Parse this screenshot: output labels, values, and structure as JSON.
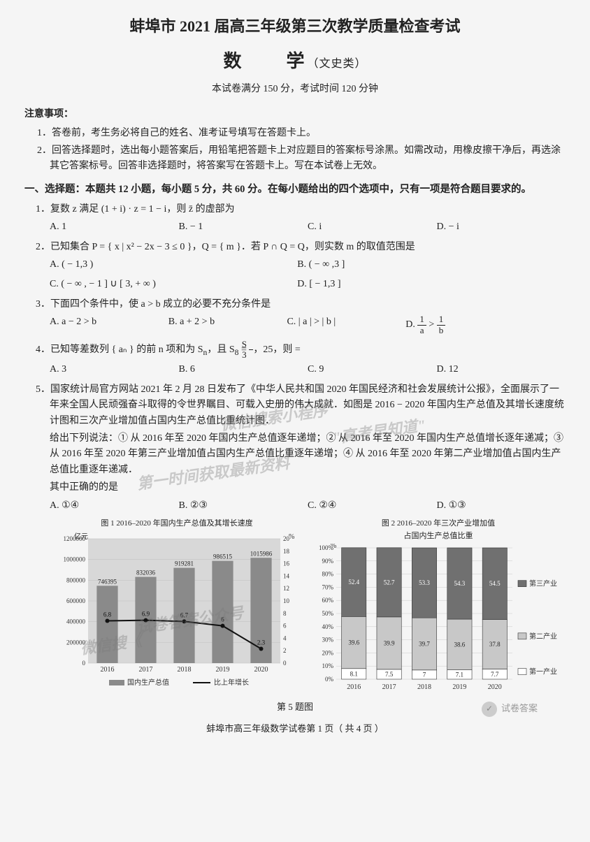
{
  "header": {
    "main_title": "蚌埠市 2021 届高三年级第三次教学质量检查考试",
    "subject": "数　　学",
    "subject_type": "（文史类）",
    "info": "本试卷满分 150 分，考试时间 120 分钟"
  },
  "notice": {
    "head": "注意事项：",
    "items": [
      "1．答卷前，考生务必将自己的姓名、准考证号填写在答题卡上。",
      "2．回答选择题时，选出每小题答案后，用铅笔把答题卡上对应题目的答案标号涂黑。如需改动，用橡皮擦干净后，再选涂其它答案标号。回答非选择题时，将答案写在答题卡上。写在本试卷上无效。"
    ]
  },
  "section1": {
    "head": "一、选择题：本题共 12 小题，每小题 5 分，共 60 分。在每小题给出的四个选项中，只有一项是符合题目要求的。"
  },
  "q1": {
    "text": "1．复数 z 满足 (1 + i) · z = 1 − i，则 z̄ 的虚部为",
    "a": "A. 1",
    "b": "B. − 1",
    "c": "C. i",
    "d": "D. − i"
  },
  "q2": {
    "text": "2．已知集合 P = { x | x² − 2x − 3 ≤ 0 }，Q = { m }．若 P ∩ Q = Q，则实数 m 的取值范围是",
    "a": "A. ( − 1,3 )",
    "b": "B. ( − ∞ ,3 ]",
    "c": "C. ( − ∞ , − 1 ] ∪ [ 3, + ∞ )",
    "d": "D. [ − 1,3 ]"
  },
  "q3": {
    "text": "3．下面四个条件中，使 a > b 成立的必要不充分条件是",
    "a": "A. a − 2 > b",
    "b": "B. a + 2 > b",
    "c": "C. | a | > | b |"
  },
  "q4": {
    "text_a": "4．已知等差数列 { aₙ } 的前 n 项和为 S",
    "text_b": "，且 S",
    "text_c": " = ",
    "text_d": "，25，则",
    "text_e": " =",
    "a": "A. 3",
    "b": "B. 6",
    "c": "C. 9",
    "d": "D. 12"
  },
  "q5": {
    "p1": "5．国家统计局官方网站 2021 年 2 月 28 日发布了《中华人民共和国 2020 年国民经济和社会发展统计公报》，全面展示了一年来全国人民顽强奋斗取得的令世界瞩目、可载入史册的伟大成就．如图是 2016 − 2020 年国内生产总值及其增长速度统计图和三次产业增加值占国内生产总值比重统计图．",
    "p2": "给出下列说法：① 从 2016 年至 2020 年国内生产总值逐年递增；② 从 2016 年至 2020 年国内生产总值增长逐年递减；③ 从 2016 年至 2020 年第三产业增加值占国内生产总值比重逐年递增；④ 从 2016 年至 2020 年第二产业增加值占国内生产总值比重逐年递减．",
    "p3": "其中正确的的是",
    "a": "A. ①④",
    "b": "B. ②③",
    "c": "C. ②④",
    "d": "D. ①③"
  },
  "chart1": {
    "title": "图 1 2016–2020 年国内生产总值及其增长速度",
    "y_label": "亿元",
    "y2_label": "%",
    "y_ticks": [
      0,
      200000,
      400000,
      600000,
      800000,
      1000000,
      1200000
    ],
    "y2_ticks": [
      0,
      2,
      4,
      6,
      8,
      10,
      12,
      14,
      16,
      18,
      20
    ],
    "years": [
      "2016",
      "2017",
      "2018",
      "2019",
      "2020"
    ],
    "bar_values": [
      746395,
      832036,
      919281,
      986515,
      1015986
    ],
    "line_values": [
      6.8,
      6.9,
      6.7,
      6,
      2.3
    ],
    "bar_color": "#8a8a8a",
    "line_color": "#111111",
    "grid_color": "#bfbfbf",
    "background": "#f5f5f5",
    "legend_bar": "国内生产总值",
    "legend_line": "比上年增长",
    "bg_shade": "#d8d8d8"
  },
  "chart2": {
    "title_l1": "图 2 2016–2020 年三次产业增加值",
    "title_l2": "占国内生产总值比重",
    "y_label": "%",
    "y_ticks": [
      0,
      10,
      20,
      30,
      40,
      50,
      60,
      70,
      80,
      90,
      100
    ],
    "years": [
      "2016",
      "2017",
      "2018",
      "2019",
      "2020"
    ],
    "tertiary": [
      52.4,
      52.7,
      53.3,
      54.3,
      54.5
    ],
    "secondary": [
      39.6,
      39.9,
      39.7,
      38.6,
      37.8
    ],
    "primary": [
      8.1,
      7.5,
      7,
      7.1,
      7.7
    ],
    "color_tertiary": "#707070",
    "color_secondary": "#c8c8c8",
    "color_primary": "#ffffff",
    "stroke": "#333333",
    "legend_t": "第三产业",
    "legend_s": "第二产业",
    "legend_p": "第一产业"
  },
  "fig_caption": "第 5 题图",
  "footer": "蚌埠市高三年级数学试卷第 1 页（ 共 4 页 ）",
  "watermarks": {
    "w1": "微信搜索小程序",
    "w2": "\"高考早知道\"",
    "w3": "第一时间获取最新资料",
    "w4": "试卷答案公众号",
    "w5": "微信搜《"
  },
  "wechat": "试卷答案"
}
